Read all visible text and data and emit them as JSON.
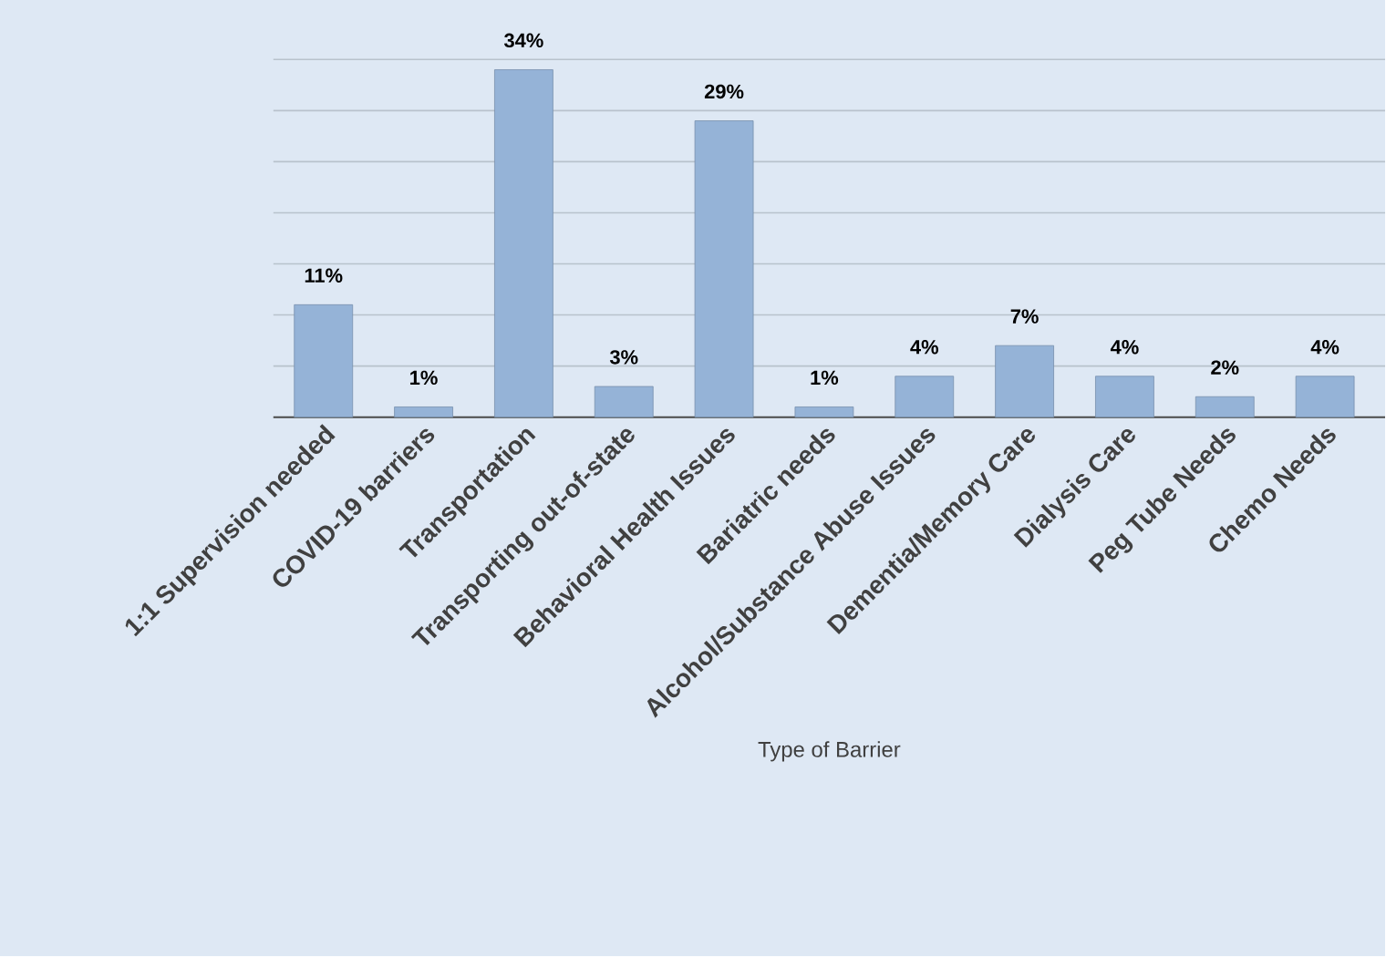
{
  "chart_data": {
    "type": "bar",
    "xlabel": "Type of Barrier",
    "categories": [
      "1:1 Supervision needed",
      "COVID-19 barriers",
      "Transportation",
      "Transporting out-of-state",
      "Behavioral Health Issues",
      "Bariatric needs",
      "Alcohol/Substance Abuse Issues",
      "Dementia/Memory Care",
      "Dialysis Care",
      "Peg Tube Needs",
      "Chemo Needs"
    ],
    "values": [
      11,
      1,
      34,
      3,
      29,
      1,
      4,
      7,
      4,
      2,
      4
    ],
    "value_labels": [
      "11%",
      "1%",
      "34%",
      "3%",
      "29%",
      "1%",
      "4%",
      "7%",
      "4%",
      "2%",
      "4%"
    ],
    "color": "#95b3d7",
    "grid": "y",
    "tick_labels": "x"
  }
}
